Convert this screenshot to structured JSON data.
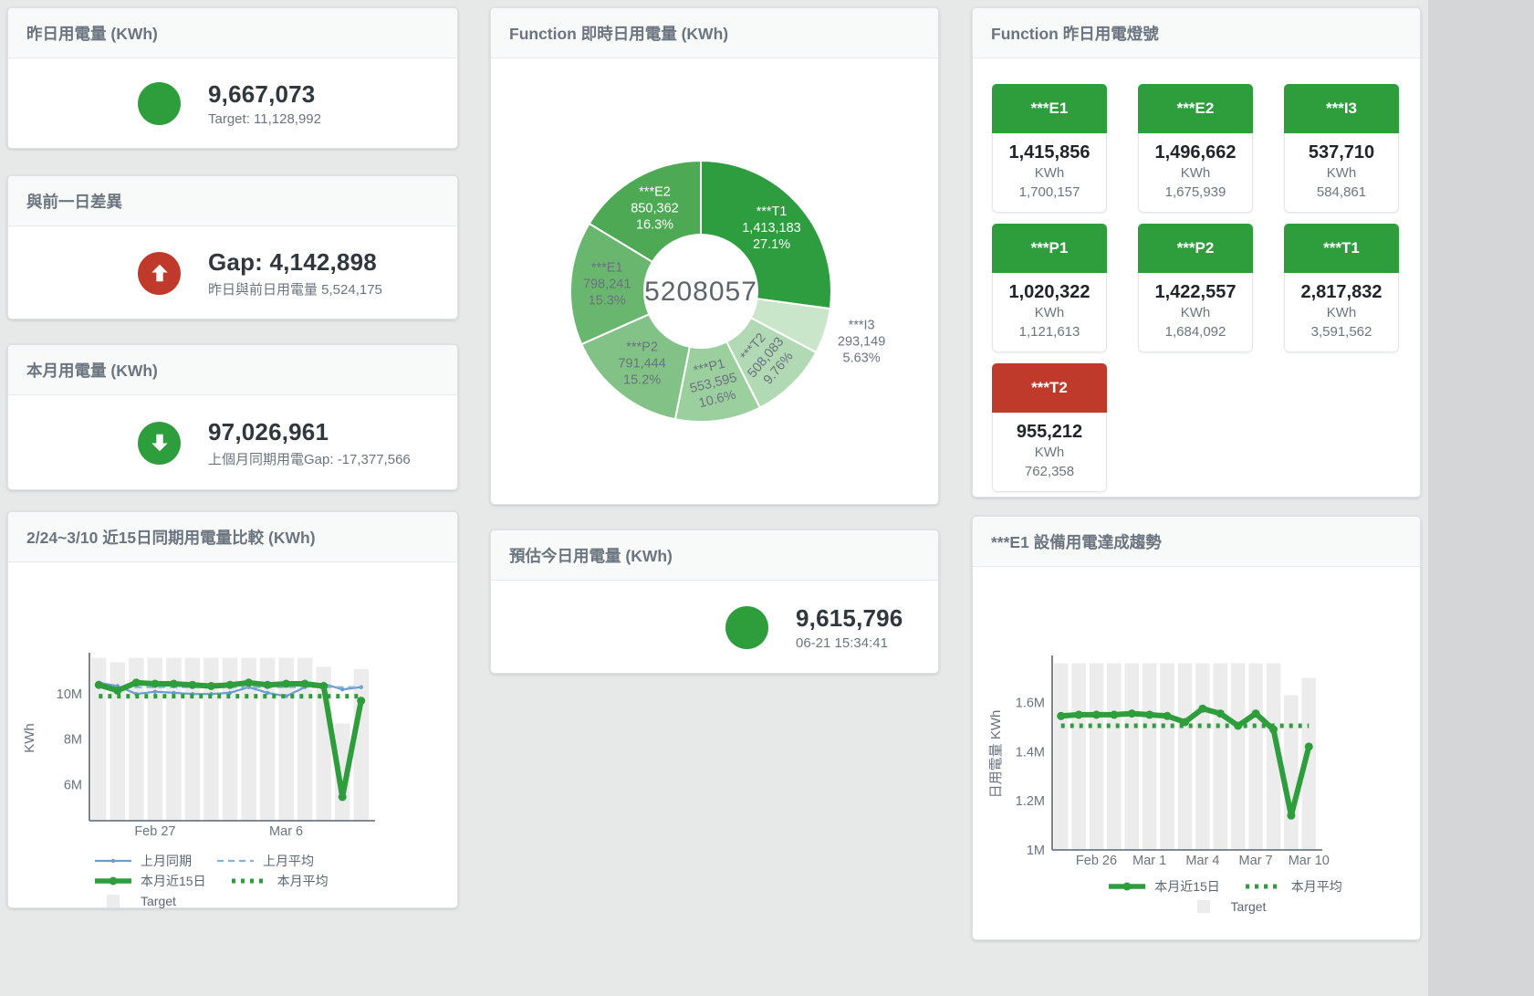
{
  "colors": {
    "green": "#2e9e3c",
    "red": "#c03a2b",
    "blue": "#6b9bd2",
    "blue_light": "#88b0dc",
    "bar_gray": "#ececec",
    "text_dark": "#30373d",
    "text_muted": "#6c757d"
  },
  "cards": {
    "yesterday": {
      "title": "昨日用電量 (KWh)",
      "value": "9,667,073",
      "subtitle": "Target: 11,128,992",
      "indicator": "circle",
      "circle_color": "green"
    },
    "day_gap": {
      "title": "與前一日差異",
      "value": "Gap: 4,142,898",
      "subtitle": "昨日與前日用電量 5,524,175",
      "indicator": "up-arrow",
      "circle_color": "red"
    },
    "month": {
      "title": "本月用電量 (KWh)",
      "value": "97,026,961",
      "subtitle": "上個月同期用電Gap: -17,377,566",
      "indicator": "down-arrow",
      "circle_color": "green"
    },
    "estimate": {
      "title": "預估今日用電量 (KWh)",
      "value": "9,615,796",
      "subtitle": "06-21 15:34:41",
      "indicator": "circle",
      "circle_color": "green"
    },
    "lights": {
      "title": "Function 昨日用電燈號",
      "tiles": [
        {
          "name": "***E1",
          "value": "1,415,856",
          "unit": "KWh",
          "target": "1,700,157",
          "status_color": "#2e9e3c"
        },
        {
          "name": "***E2",
          "value": "1,496,662",
          "unit": "KWh",
          "target": "1,675,939",
          "status_color": "#2e9e3c"
        },
        {
          "name": "***I3",
          "value": "537,710",
          "unit": "KWh",
          "target": "584,861",
          "status_color": "#2e9e3c"
        },
        {
          "name": "***P1",
          "value": "1,020,322",
          "unit": "KWh",
          "target": "1,121,613",
          "status_color": "#2e9e3c"
        },
        {
          "name": "***P2",
          "value": "1,422,557",
          "unit": "KWh",
          "target": "1,684,092",
          "status_color": "#2e9e3c"
        },
        {
          "name": "***T1",
          "value": "2,817,832",
          "unit": "KWh",
          "target": "3,591,562",
          "status_color": "#2e9e3c"
        },
        {
          "name": "***T2",
          "value": "955,212",
          "unit": "KWh",
          "target": "762,358",
          "status_color": "#c03a2b"
        }
      ]
    }
  },
  "chart_data": [
    {
      "id": "donut",
      "type": "pie",
      "title": "Function 即時日用電量 (KWh)",
      "center_label": "5208057",
      "unit": "KWh",
      "segments": [
        {
          "name": "***T1",
          "value": 1413183,
          "value_str": "1,413,183",
          "pct": "27.1%",
          "color": "#2e9d40",
          "label_color": "#ffffff",
          "label_rotate": 0,
          "label_outside": false
        },
        {
          "name": "***I3",
          "value": 293149,
          "value_str": "293,149",
          "pct": "5.63%",
          "color": "#c9e5ca",
          "label_color": "#6b7280",
          "label_rotate": 0,
          "label_outside": true
        },
        {
          "name": "***T2",
          "value": 508083,
          "value_str": "508,083",
          "pct": "9.76%",
          "color": "#b1d9b3",
          "label_color": "#6b7280",
          "label_rotate": -50,
          "label_outside": false
        },
        {
          "name": "***P1",
          "value": 553595,
          "value_str": "553,595",
          "pct": "10.6%",
          "color": "#9bcf9e",
          "label_color": "#6b7280",
          "label_rotate": -14,
          "label_outside": false
        },
        {
          "name": "***P2",
          "value": 791444,
          "value_str": "791,444",
          "pct": "15.2%",
          "color": "#82c286",
          "label_color": "#6b7280",
          "label_rotate": 0,
          "label_outside": false
        },
        {
          "name": "***E1",
          "value": 798241,
          "value_str": "798,241",
          "pct": "15.3%",
          "color": "#69b66e",
          "label_color": "#6b7280",
          "label_rotate": 0,
          "label_outside": false
        },
        {
          "name": "***E2",
          "value": 850362,
          "value_str": "850,362",
          "pct": "16.3%",
          "color": "#4da953",
          "label_color": "#ffffff",
          "label_rotate": 0,
          "label_outside": false
        }
      ]
    },
    {
      "id": "compare",
      "type": "line",
      "title": "2/24~3/10 近15日同期用電量比較 (KWh)",
      "ylabel": "KWh",
      "values_unit": "M (millions KWh)",
      "ylim": [
        4.4,
        11.7
      ],
      "yticks": [
        {
          "v": 6,
          "label": "6M"
        },
        {
          "v": 8,
          "label": "8M"
        },
        {
          "v": 10,
          "label": "10M"
        }
      ],
      "x_count": 15,
      "xticks": [
        {
          "i": 3,
          "label": "Feb 27"
        },
        {
          "i": 10,
          "label": "Mar 6"
        }
      ],
      "grid": false,
      "legend_position": "bottom",
      "series": [
        {
          "name": "Target",
          "kind": "bar",
          "color": "#ececec",
          "values": [
            11.6,
            11.4,
            11.6,
            11.6,
            11.6,
            11.6,
            11.6,
            11.6,
            11.6,
            11.6,
            11.6,
            11.6,
            11.2,
            8.7,
            11.1
          ]
        },
        {
          "name": "上月同期",
          "kind": "line",
          "style": "solid",
          "color": "#6b9bd2",
          "width": 2.2,
          "marker": 2.2,
          "values": [
            10.5,
            10.35,
            10.0,
            10.1,
            10.05,
            10.0,
            10.0,
            10.05,
            10.3,
            10.05,
            9.9,
            10.3,
            10.45,
            10.2,
            10.3
          ]
        },
        {
          "name": "上月平均",
          "kind": "line",
          "style": "dashed",
          "color": "#88b0dc",
          "width": 2.2,
          "marker": 0,
          "values": [
            10.3,
            10.3,
            10.3,
            10.3,
            10.3,
            10.3,
            10.3,
            10.3,
            10.3,
            10.3,
            10.3,
            10.3,
            10.3,
            10.3,
            10.3
          ]
        },
        {
          "name": "本月近15日",
          "kind": "line",
          "style": "solid",
          "color": "#2e9e3c",
          "width": 6,
          "marker": 4.5,
          "values": [
            10.4,
            10.15,
            10.5,
            10.45,
            10.45,
            10.4,
            10.35,
            10.4,
            10.5,
            10.4,
            10.45,
            10.45,
            10.35,
            5.45,
            9.7
          ]
        },
        {
          "name": "本月平均",
          "kind": "line",
          "style": "dotted",
          "color": "#2e9e3c",
          "width": 5,
          "marker": 0,
          "values": [
            9.9,
            9.9,
            9.9,
            9.9,
            9.9,
            9.9,
            9.9,
            9.9,
            9.9,
            9.9,
            9.9,
            9.9,
            9.9,
            9.9,
            9.9
          ]
        }
      ],
      "legend_rows": [
        [
          "上月同期",
          "上月平均"
        ],
        [
          "本月近15日",
          "本月平均"
        ],
        [
          "Target"
        ]
      ]
    },
    {
      "id": "trend",
      "type": "line",
      "title": "***E1 設備用電達成趨勢",
      "ylabel": "日用電量 KWh",
      "values_unit": "M (millions KWh)",
      "ylim": [
        1.0,
        1.78
      ],
      "yticks": [
        {
          "v": 1,
          "label": "1M"
        },
        {
          "v": 1.2,
          "label": "1.2M"
        },
        {
          "v": 1.4,
          "label": "1.4M"
        },
        {
          "v": 1.6,
          "label": "1.6M"
        }
      ],
      "x_count": 15,
      "xticks": [
        {
          "i": 2,
          "label": "Feb 26"
        },
        {
          "i": 5,
          "label": "Mar 1"
        },
        {
          "i": 8,
          "label": "Mar 4"
        },
        {
          "i": 11,
          "label": "Mar 7"
        },
        {
          "i": 14,
          "label": "Mar 10"
        }
      ],
      "grid": false,
      "legend_position": "bottom",
      "series": [
        {
          "name": "Target",
          "kind": "bar",
          "color": "#ececec",
          "values": [
            1.76,
            1.76,
            1.76,
            1.76,
            1.76,
            1.76,
            1.76,
            1.76,
            1.76,
            1.76,
            1.76,
            1.76,
            1.76,
            1.63,
            1.7
          ]
        },
        {
          "name": "本月近15日",
          "kind": "line",
          "style": "solid",
          "color": "#2e9e3c",
          "width": 6,
          "marker": 4.5,
          "values": [
            1.545,
            1.55,
            1.55,
            1.55,
            1.555,
            1.55,
            1.545,
            1.52,
            1.575,
            1.555,
            1.505,
            1.555,
            1.49,
            1.14,
            1.42
          ]
        },
        {
          "name": "本月平均",
          "kind": "line",
          "style": "dotted",
          "color": "#2e9e3c",
          "width": 5,
          "marker": 0,
          "values": [
            1.505,
            1.505,
            1.505,
            1.505,
            1.505,
            1.505,
            1.505,
            1.505,
            1.505,
            1.505,
            1.505,
            1.505,
            1.505,
            1.505,
            1.505
          ]
        }
      ],
      "legend_rows": [
        [
          "本月近15日",
          "本月平均"
        ],
        [
          "Target"
        ]
      ]
    }
  ]
}
